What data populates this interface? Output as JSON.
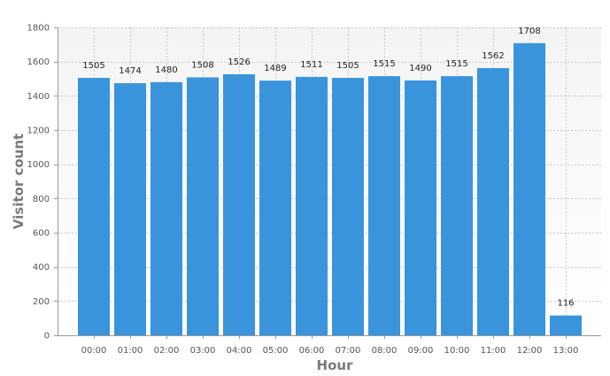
{
  "chart_data": {
    "type": "bar",
    "categories": [
      "00:00",
      "01:00",
      "02:00",
      "03:00",
      "04:00",
      "05:00",
      "06:00",
      "07:00",
      "08:00",
      "09:00",
      "10:00",
      "11:00",
      "12:00",
      "13:00"
    ],
    "values": [
      1505,
      1474,
      1480,
      1508,
      1526,
      1489,
      1511,
      1505,
      1515,
      1490,
      1515,
      1562,
      1708,
      116
    ],
    "title": "",
    "xlabel": "Hour",
    "ylabel": "Visitor count",
    "ylim": [
      0,
      1800
    ],
    "yticks": [
      0,
      200,
      400,
      600,
      800,
      1000,
      1200,
      1400,
      1600,
      1800
    ],
    "grid": true,
    "legend": "none",
    "bar_color": "#3a94dc",
    "grid_color": "#c8c8c8",
    "plot_background": [
      "#f4f4f4",
      "#ffffff"
    ]
  }
}
